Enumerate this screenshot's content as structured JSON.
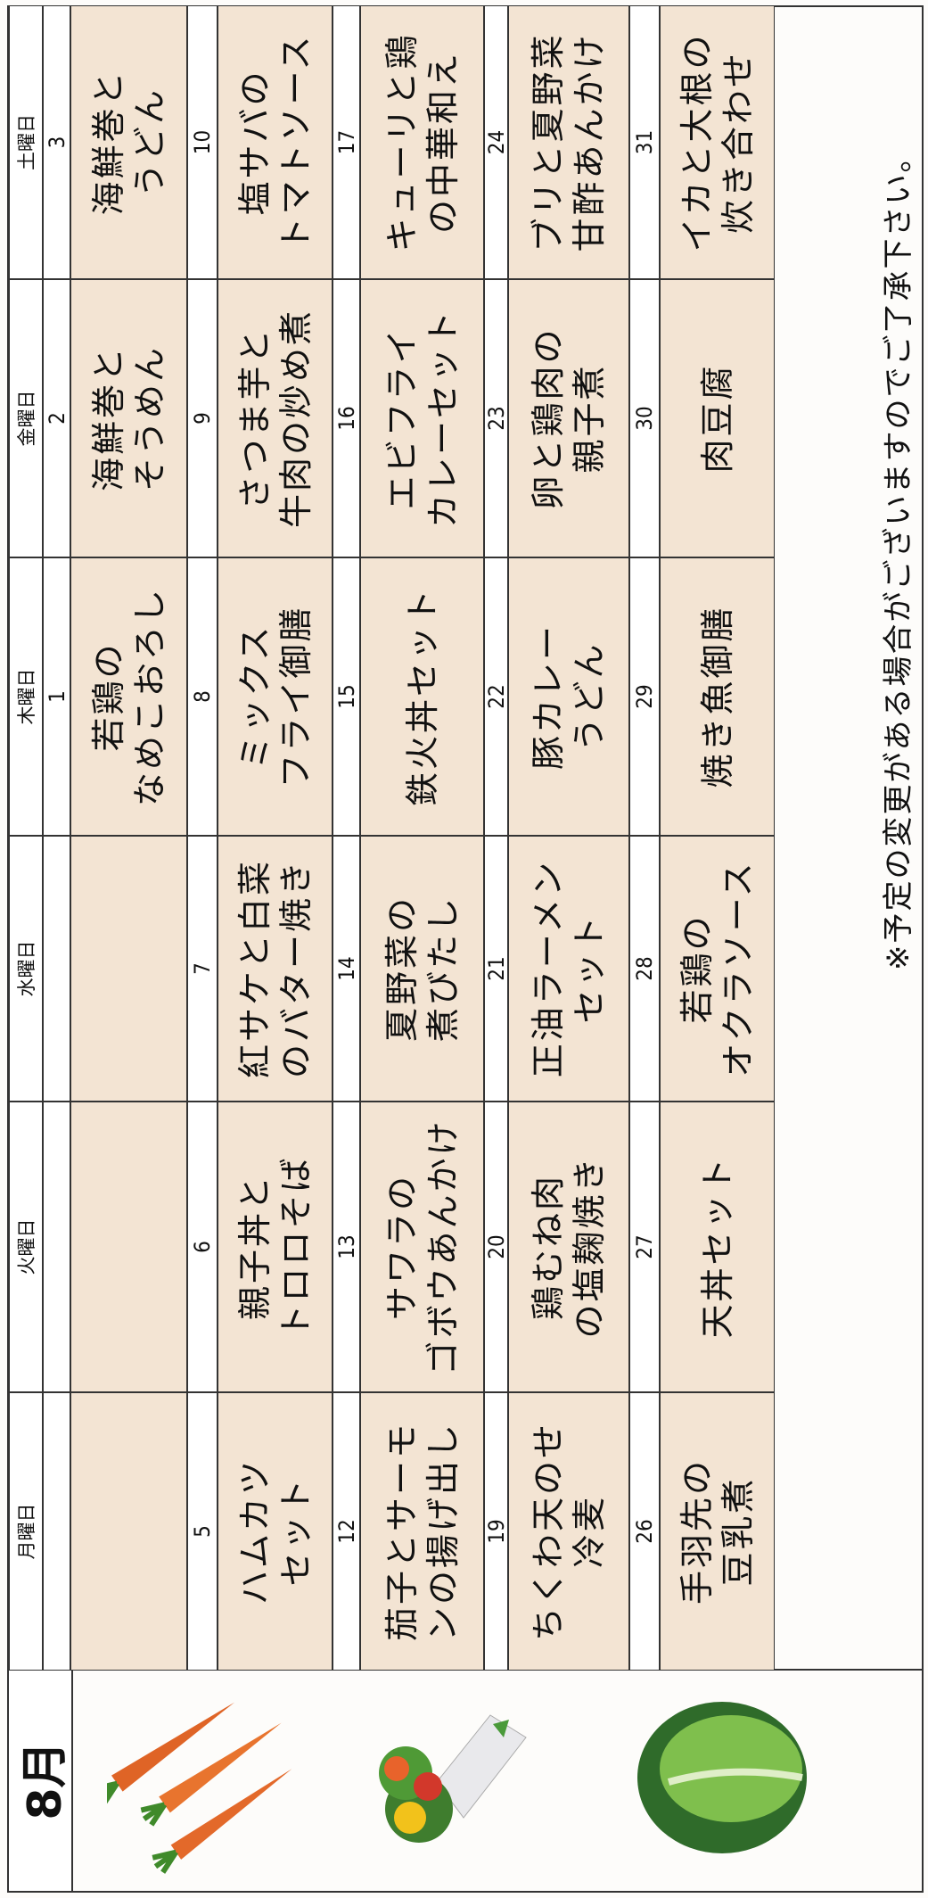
{
  "header": {
    "month": "8月",
    "weekdays": [
      "月曜日",
      "火曜日",
      "水曜日",
      "木曜日",
      "金曜日",
      "土曜日"
    ]
  },
  "weeks": [
    {
      "dates": [
        null,
        null,
        null,
        "1",
        "2",
        "3"
      ],
      "menus": [
        null,
        null,
        null,
        [
          "若鶏の",
          "なめこおろし"
        ],
        [
          "海鮮巻と",
          "そうめん"
        ],
        [
          "海鮮巻と",
          "うどん"
        ]
      ]
    },
    {
      "dates": [
        "5",
        "6",
        "7",
        "8",
        "9",
        "10"
      ],
      "menus": [
        [
          "ハムカツ",
          "セット"
        ],
        [
          "親子丼と",
          "トロロそば"
        ],
        [
          "紅サケと白菜",
          "のバター焼き"
        ],
        [
          "ミックス",
          "フライ御膳"
        ],
        [
          "さつま芋と",
          "牛肉の炒め煮"
        ],
        [
          "塩サバの",
          "トマトソース"
        ]
      ]
    },
    {
      "dates": [
        "12",
        "13",
        "14",
        "15",
        "16",
        "17"
      ],
      "menus": [
        [
          "茄子とサーモ",
          "ンの揚げ出し"
        ],
        [
          "サワラの",
          "ゴボウあんかけ"
        ],
        [
          "夏野菜の",
          "煮びたし"
        ],
        [
          "鉄火丼セット"
        ],
        [
          "エビフライ",
          "カレーセット"
        ],
        [
          "キューリと鶏",
          "の中華和え"
        ]
      ]
    },
    {
      "dates": [
        "19",
        "20",
        "21",
        "22",
        "23",
        "24"
      ],
      "menus": [
        [
          "ちくわ天のせ",
          "冷麦"
        ],
        [
          "鶏むね肉",
          "の塩麹焼き"
        ],
        [
          "正油ラーメン",
          "セット"
        ],
        [
          "豚カレー",
          "うどん"
        ],
        [
          "卵と鶏肉の",
          "親子煮"
        ],
        [
          "ブリと夏野菜",
          "甘酢あんかけ"
        ]
      ]
    },
    {
      "dates": [
        "26",
        "27",
        "28",
        "29",
        "30",
        "31"
      ],
      "menus": [
        [
          "手羽先の",
          "豆乳煮"
        ],
        [
          "天丼セット"
        ],
        [
          "若鶏の",
          "オクラソース"
        ],
        [
          "焼き魚御膳"
        ],
        [
          "肉豆腐"
        ],
        [
          "イカと大根の",
          "炊き合わせ"
        ]
      ]
    }
  ],
  "note": "※予定の変更がある場合がございますのでご了承下さい。"
}
